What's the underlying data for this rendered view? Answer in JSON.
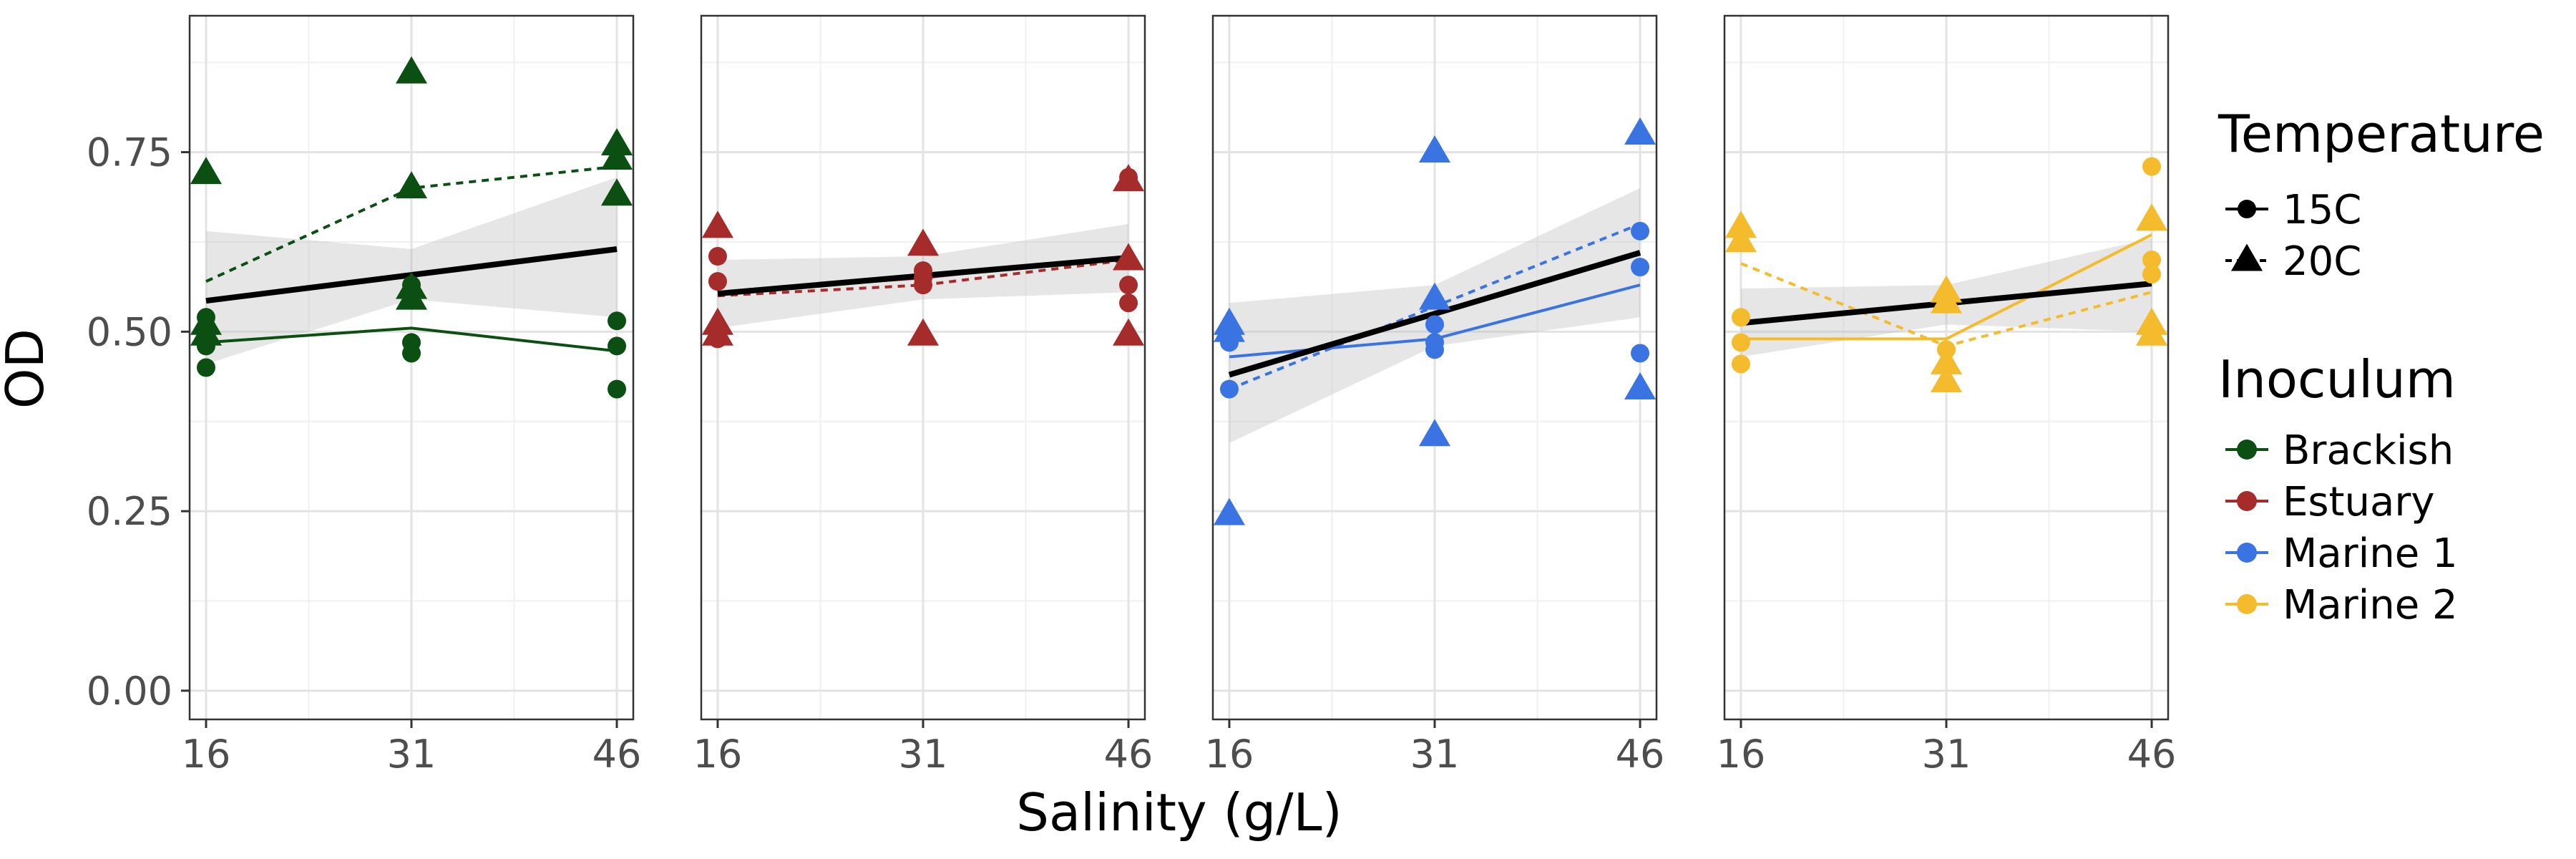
{
  "chart_data": {
    "type": "scatter",
    "x_label": "Salinity (g/L)",
    "y_label": "OD",
    "x_ticks": [
      16,
      31,
      46
    ],
    "y_ticks": [
      0.0,
      0.25,
      0.5,
      0.75
    ],
    "y_tick_labels": [
      "0.00",
      "0.25",
      "0.50",
      "0.75"
    ],
    "xlim": [
      14.8,
      47.2
    ],
    "ylim": [
      -0.04,
      0.94
    ],
    "grid": true,
    "legend_position": "right",
    "legend": {
      "temperature": {
        "title": "Temperature",
        "items": [
          {
            "label": "15C",
            "shape": "circle",
            "linetype": "solid"
          },
          {
            "label": "20C",
            "shape": "triangle",
            "linetype": "dashed"
          }
        ]
      },
      "inoculum": {
        "title": "Inoculum",
        "items": [
          {
            "label": "Brackish",
            "color": "#0b5012"
          },
          {
            "label": "Estuary",
            "color": "#a62b2b"
          },
          {
            "label": "Marine 1",
            "color": "#3a74e2"
          },
          {
            "label": "Marine 2",
            "color": "#f4bc2c"
          }
        ]
      }
    },
    "panels": [
      {
        "inoculum": "Brackish",
        "color": "#0b5012",
        "points": [
          {
            "x": 16,
            "y": 0.52,
            "temp": "15C"
          },
          {
            "x": 16,
            "y": 0.5,
            "temp": "15C"
          },
          {
            "x": 16,
            "y": 0.48,
            "temp": "15C"
          },
          {
            "x": 16,
            "y": 0.45,
            "temp": "15C"
          },
          {
            "x": 31,
            "y": 0.565,
            "temp": "15C"
          },
          {
            "x": 31,
            "y": 0.55,
            "temp": "15C"
          },
          {
            "x": 31,
            "y": 0.485,
            "temp": "15C"
          },
          {
            "x": 31,
            "y": 0.47,
            "temp": "15C"
          },
          {
            "x": 46,
            "y": 0.515,
            "temp": "15C"
          },
          {
            "x": 46,
            "y": 0.48,
            "temp": "15C"
          },
          {
            "x": 46,
            "y": 0.42,
            "temp": "15C"
          },
          {
            "x": 16,
            "y": 0.72,
            "temp": "20C"
          },
          {
            "x": 16,
            "y": 0.51,
            "temp": "20C"
          },
          {
            "x": 16,
            "y": 0.495,
            "temp": "20C"
          },
          {
            "x": 31,
            "y": 0.86,
            "temp": "20C"
          },
          {
            "x": 31,
            "y": 0.7,
            "temp": "20C"
          },
          {
            "x": 31,
            "y": 0.56,
            "temp": "20C"
          },
          {
            "x": 31,
            "y": 0.545,
            "temp": "20C"
          },
          {
            "x": 46,
            "y": 0.76,
            "temp": "20C"
          },
          {
            "x": 46,
            "y": 0.74,
            "temp": "20C"
          },
          {
            "x": 46,
            "y": 0.69,
            "temp": "20C"
          }
        ],
        "trend_15C": [
          [
            16,
            0.485
          ],
          [
            31,
            0.505
          ],
          [
            46,
            0.473
          ]
        ],
        "trend_20C": [
          [
            16,
            0.57
          ],
          [
            31,
            0.7
          ],
          [
            46,
            0.73
          ]
        ],
        "overall_fit": [
          [
            16,
            0.543
          ],
          [
            46,
            0.615
          ]
        ],
        "ci_lower": [
          [
            16,
            0.455
          ],
          [
            31,
            0.545
          ],
          [
            46,
            0.52
          ]
        ],
        "ci_upper": [
          [
            16,
            0.64
          ],
          [
            31,
            0.615
          ],
          [
            46,
            0.715
          ]
        ]
      },
      {
        "inoculum": "Estuary",
        "color": "#a62b2b",
        "points": [
          {
            "x": 16,
            "y": 0.605,
            "temp": "15C"
          },
          {
            "x": 16,
            "y": 0.57,
            "temp": "15C"
          },
          {
            "x": 16,
            "y": 0.5,
            "temp": "15C"
          },
          {
            "x": 16,
            "y": 0.49,
            "temp": "15C"
          },
          {
            "x": 31,
            "y": 0.585,
            "temp": "15C"
          },
          {
            "x": 31,
            "y": 0.575,
            "temp": "15C"
          },
          {
            "x": 31,
            "y": 0.565,
            "temp": "15C"
          },
          {
            "x": 46,
            "y": 0.715,
            "temp": "15C"
          },
          {
            "x": 46,
            "y": 0.565,
            "temp": "15C"
          },
          {
            "x": 46,
            "y": 0.54,
            "temp": "15C"
          },
          {
            "x": 16,
            "y": 0.645,
            "temp": "20C"
          },
          {
            "x": 16,
            "y": 0.51,
            "temp": "20C"
          },
          {
            "x": 16,
            "y": 0.495,
            "temp": "20C"
          },
          {
            "x": 31,
            "y": 0.62,
            "temp": "20C"
          },
          {
            "x": 31,
            "y": 0.495,
            "temp": "20C"
          },
          {
            "x": 46,
            "y": 0.71,
            "temp": "20C"
          },
          {
            "x": 46,
            "y": 0.6,
            "temp": "20C"
          },
          {
            "x": 46,
            "y": 0.495,
            "temp": "20C"
          }
        ],
        "trend_15C": [
          [
            16,
            0.555
          ],
          [
            31,
            0.575
          ],
          [
            46,
            0.605
          ]
        ],
        "trend_20C": [
          [
            16,
            0.55
          ],
          [
            31,
            0.565
          ],
          [
            46,
            0.6
          ]
        ],
        "overall_fit": [
          [
            16,
            0.553
          ],
          [
            46,
            0.603
          ]
        ],
        "ci_lower": [
          [
            16,
            0.505
          ],
          [
            31,
            0.545
          ],
          [
            46,
            0.555
          ]
        ],
        "ci_upper": [
          [
            16,
            0.6
          ],
          [
            31,
            0.605
          ],
          [
            46,
            0.65
          ]
        ]
      },
      {
        "inoculum": "Marine 1",
        "color": "#3a74e2",
        "points": [
          {
            "x": 16,
            "y": 0.495,
            "temp": "15C"
          },
          {
            "x": 16,
            "y": 0.485,
            "temp": "15C"
          },
          {
            "x": 16,
            "y": 0.42,
            "temp": "15C"
          },
          {
            "x": 31,
            "y": 0.51,
            "temp": "15C"
          },
          {
            "x": 31,
            "y": 0.485,
            "temp": "15C"
          },
          {
            "x": 31,
            "y": 0.475,
            "temp": "15C"
          },
          {
            "x": 46,
            "y": 0.64,
            "temp": "15C"
          },
          {
            "x": 46,
            "y": 0.59,
            "temp": "15C"
          },
          {
            "x": 46,
            "y": 0.47,
            "temp": "15C"
          },
          {
            "x": 16,
            "y": 0.51,
            "temp": "20C"
          },
          {
            "x": 16,
            "y": 0.5,
            "temp": "20C"
          },
          {
            "x": 16,
            "y": 0.245,
            "temp": "20C"
          },
          {
            "x": 31,
            "y": 0.75,
            "temp": "20C"
          },
          {
            "x": 31,
            "y": 0.545,
            "temp": "20C"
          },
          {
            "x": 31,
            "y": 0.355,
            "temp": "20C"
          },
          {
            "x": 46,
            "y": 0.775,
            "temp": "20C"
          },
          {
            "x": 46,
            "y": 0.42,
            "temp": "20C"
          }
        ],
        "trend_15C": [
          [
            16,
            0.465
          ],
          [
            31,
            0.49
          ],
          [
            46,
            0.565
          ]
        ],
        "trend_20C": [
          [
            16,
            0.42
          ],
          [
            31,
            0.535
          ],
          [
            46,
            0.65
          ]
        ],
        "overall_fit": [
          [
            16,
            0.44
          ],
          [
            46,
            0.61
          ]
        ],
        "ci_lower": [
          [
            16,
            0.345
          ],
          [
            31,
            0.48
          ],
          [
            46,
            0.52
          ]
        ],
        "ci_upper": [
          [
            16,
            0.54
          ],
          [
            31,
            0.565
          ],
          [
            46,
            0.7
          ]
        ]
      },
      {
        "inoculum": "Marine 2",
        "color": "#f4bc2c",
        "points": [
          {
            "x": 16,
            "y": 0.52,
            "temp": "15C"
          },
          {
            "x": 16,
            "y": 0.485,
            "temp": "15C"
          },
          {
            "x": 16,
            "y": 0.455,
            "temp": "15C"
          },
          {
            "x": 31,
            "y": 0.475,
            "temp": "15C"
          },
          {
            "x": 46,
            "y": 0.73,
            "temp": "15C"
          },
          {
            "x": 46,
            "y": 0.6,
            "temp": "15C"
          },
          {
            "x": 46,
            "y": 0.58,
            "temp": "15C"
          },
          {
            "x": 16,
            "y": 0.645,
            "temp": "20C"
          },
          {
            "x": 16,
            "y": 0.625,
            "temp": "20C"
          },
          {
            "x": 31,
            "y": 0.555,
            "temp": "20C"
          },
          {
            "x": 31,
            "y": 0.54,
            "temp": "20C"
          },
          {
            "x": 31,
            "y": 0.455,
            "temp": "20C"
          },
          {
            "x": 31,
            "y": 0.43,
            "temp": "20C"
          },
          {
            "x": 46,
            "y": 0.655,
            "temp": "20C"
          },
          {
            "x": 46,
            "y": 0.51,
            "temp": "20C"
          },
          {
            "x": 46,
            "y": 0.495,
            "temp": "20C"
          }
        ],
        "trend_15C": [
          [
            16,
            0.49
          ],
          [
            31,
            0.49
          ],
          [
            46,
            0.635
          ]
        ],
        "trend_20C": [
          [
            16,
            0.595
          ],
          [
            31,
            0.48
          ],
          [
            46,
            0.555
          ]
        ],
        "overall_fit": [
          [
            16,
            0.512
          ],
          [
            46,
            0.567
          ]
        ],
        "ci_lower": [
          [
            16,
            0.465
          ],
          [
            31,
            0.51
          ],
          [
            46,
            0.5
          ]
        ],
        "ci_upper": [
          [
            16,
            0.56
          ],
          [
            31,
            0.565
          ],
          [
            46,
            0.63
          ]
        ]
      }
    ]
  }
}
